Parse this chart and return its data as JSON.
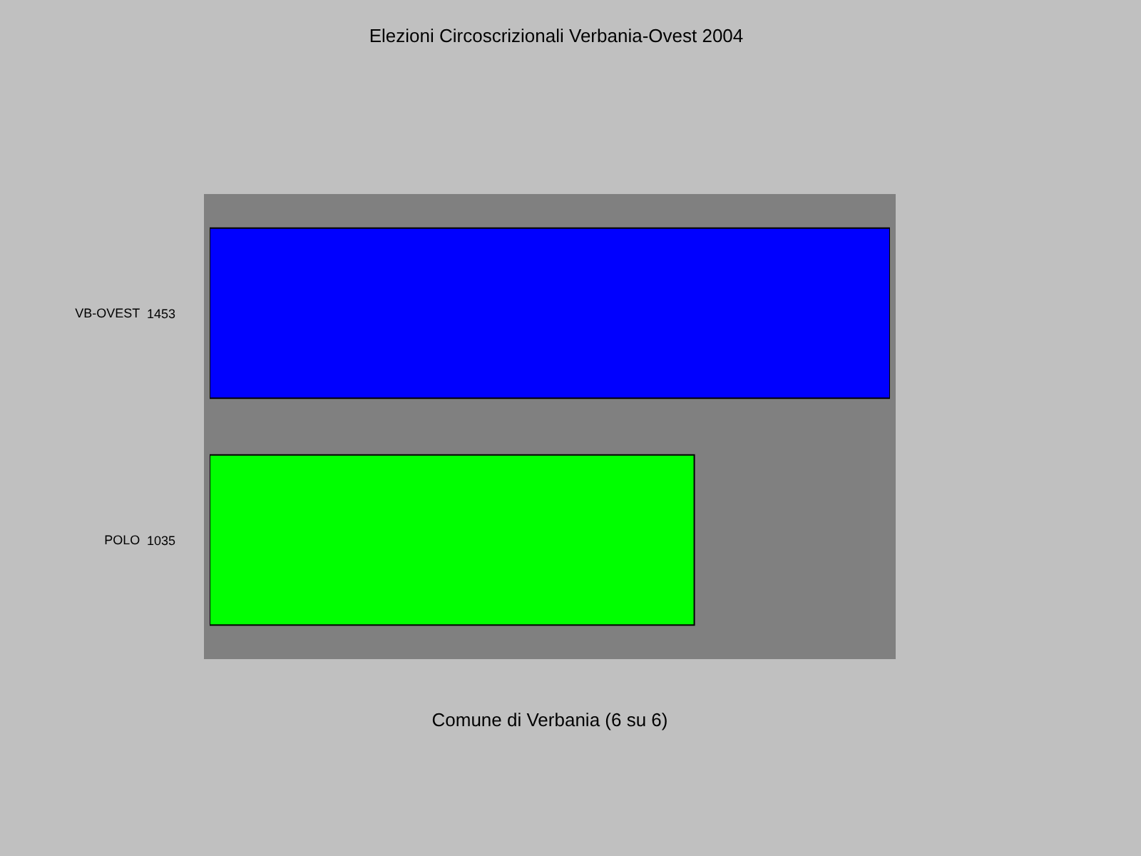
{
  "chart_data": {
    "type": "bar",
    "orientation": "horizontal",
    "title": "Elezioni Circoscrizionali Verbania-Ovest 2004",
    "xlabel": "Comune di Verbania (6 su 6)",
    "categories": [
      "VB-OVEST",
      "POLO"
    ],
    "values": [
      1453,
      1035
    ],
    "colors": [
      "#0000ff",
      "#00ff00"
    ],
    "data_labels": true,
    "tick_labels": "y"
  }
}
